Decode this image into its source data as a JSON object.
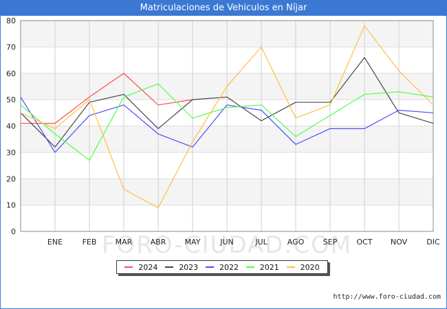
{
  "title": "Matriculaciones de Vehiculos en Níjar",
  "watermark": "FORO-CIUDAD.COM",
  "credit": "http://www.foro-ciudad.com",
  "chart_data": {
    "type": "line",
    "title": "Matriculaciones de Vehiculos en Níjar",
    "categories": [
      "",
      "ENE",
      "FEB",
      "MAR",
      "ABR",
      "MAY",
      "JUN",
      "JUL",
      "AGO",
      "SEP",
      "OCT",
      "NOV",
      "DIC"
    ],
    "ylim": [
      0,
      80
    ],
    "yticks": [
      0,
      10,
      20,
      30,
      40,
      50,
      60,
      70,
      80
    ],
    "grid": true,
    "legend_position": "bottom",
    "series": [
      {
        "name": "2024",
        "color": "#ff4b4b",
        "values": [
          41,
          41,
          51,
          60,
          48,
          50,
          null,
          null,
          null,
          null,
          null,
          null,
          null
        ]
      },
      {
        "name": "2023",
        "color": "#444444",
        "values": [
          45,
          32,
          49,
          52,
          39,
          50,
          51,
          42,
          49,
          49,
          66,
          45,
          41
        ]
      },
      {
        "name": "2022",
        "color": "#4b4bff",
        "values": [
          51,
          30,
          44,
          48,
          37,
          32,
          48,
          46,
          33,
          39,
          39,
          46,
          45
        ]
      },
      {
        "name": "2021",
        "color": "#4bff4b",
        "values": [
          48,
          37,
          27,
          51,
          56,
          43,
          47,
          48,
          36,
          44,
          52,
          53,
          51
        ]
      },
      {
        "name": "2020",
        "color": "#ffbf40",
        "values": [
          45,
          39,
          50,
          16,
          9,
          34,
          55,
          70,
          43,
          48,
          78,
          61,
          48
        ]
      }
    ]
  }
}
